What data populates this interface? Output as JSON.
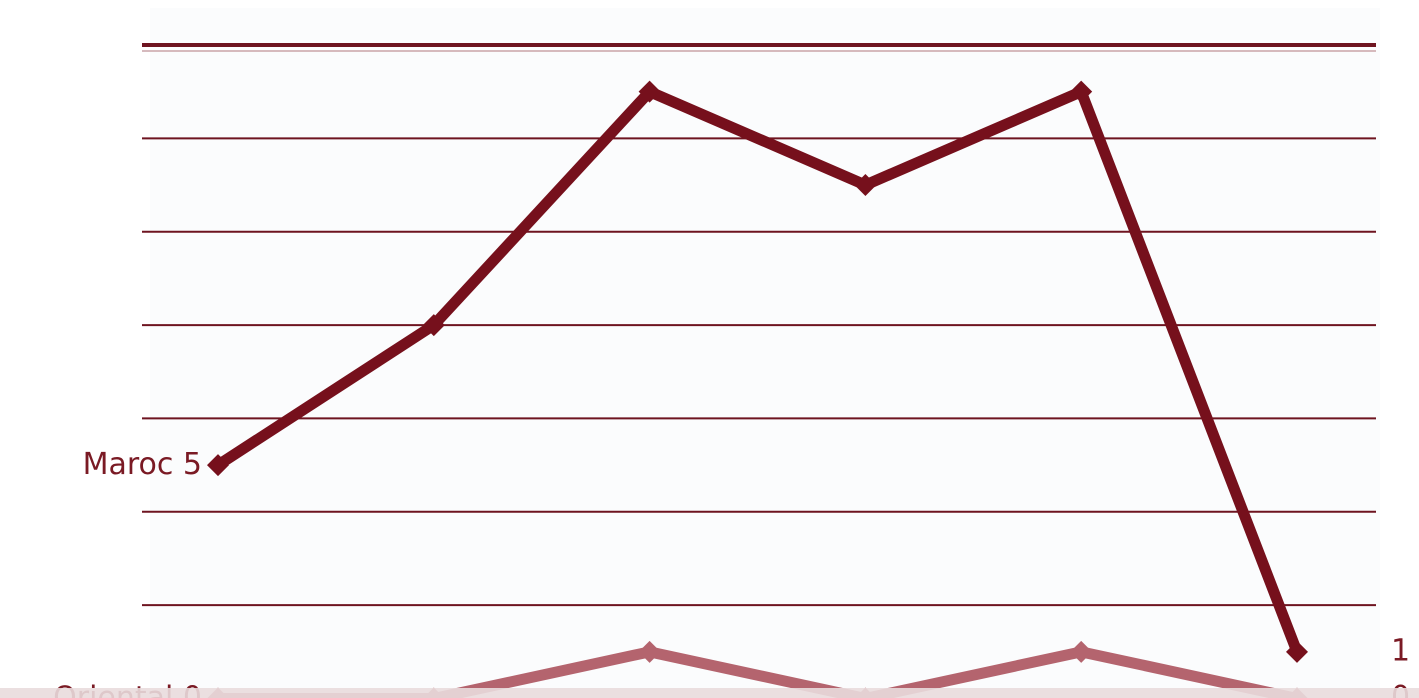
{
  "chart_data": {
    "type": "line",
    "categories": [
      null,
      null,
      null,
      null,
      null,
      null
    ],
    "series": [
      {
        "name": "Maroc",
        "color": "#76101c",
        "values": [
          5,
          8,
          13,
          11,
          13,
          1
        ]
      },
      {
        "name": "Oriental",
        "color": "#b4646e",
        "values": [
          0,
          0,
          1,
          0,
          1,
          0
        ]
      }
    ],
    "ylim": [
      0,
      14
    ],
    "yticks": [
      2,
      4,
      6,
      8,
      10,
      12,
      14
    ],
    "grid": true
  }
}
